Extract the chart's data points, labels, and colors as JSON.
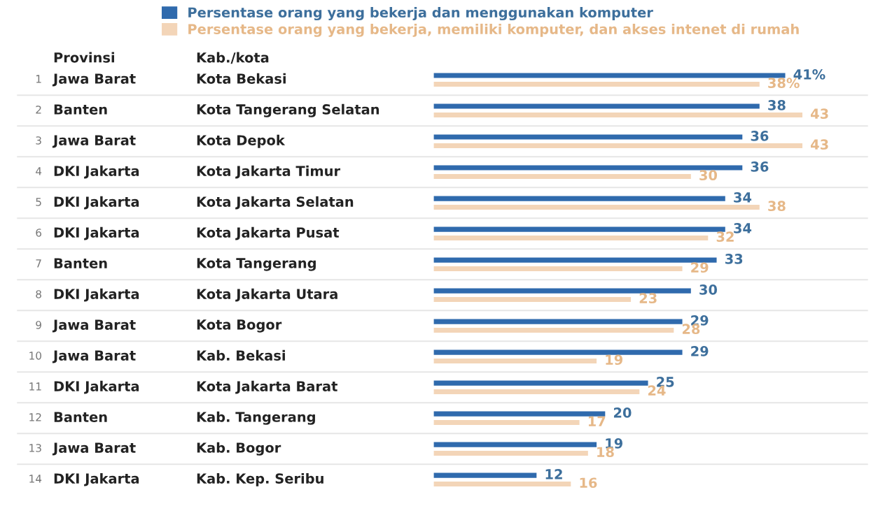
{
  "chart_data": {
    "type": "bar",
    "orientation": "horizontal",
    "legend": "top left",
    "categories": [
      "Kota Bekasi",
      "Kota Tangerang Selatan",
      "Kota Depok",
      "Kota Jakarta Timur",
      "Kota Jakarta Selatan",
      "Kota Jakarta Pusat",
      "Kota Tangerang",
      "Kota Jakarta Utara",
      "Kota Bogor",
      "Kab. Bekasi",
      "Kota Jakarta Barat",
      "Kab. Tangerang",
      "Kab. Bogor",
      "Kab. Kep. Seribu"
    ],
    "series": [
      {
        "name": "Persentase orang yang bekerja dan menggunakan komputer",
        "color": "#2f6aad",
        "values": [
          41,
          38,
          36,
          36,
          34,
          34,
          33,
          30,
          29,
          29,
          25,
          20,
          19,
          12
        ],
        "value_labels": [
          "41%",
          "38",
          "36",
          "36",
          "34",
          "34",
          "33",
          "30",
          "29",
          "29",
          "25",
          "20",
          "19",
          "12"
        ]
      },
      {
        "name": "Persentase orang yang bekerja, memiliki komputer, dan akses intenet di rumah",
        "color": "#f3d5b8",
        "values": [
          38,
          43,
          43,
          30,
          38,
          32,
          29,
          23,
          28,
          19,
          24,
          17,
          18,
          16
        ],
        "value_labels": [
          "38%",
          "43",
          "43",
          "30",
          "38",
          "32",
          "29",
          "23",
          "28",
          "19",
          "24",
          "17",
          "18",
          "16"
        ]
      }
    ],
    "annotations": [
      "Provinsi",
      "Kab./kota",
      "1",
      "Jawa Barat",
      "2",
      "Banten",
      "3",
      "Jawa Barat",
      "4",
      "DKI Jakarta",
      "5",
      "DKI Jakarta",
      "6",
      "DKI Jakarta",
      "7",
      "Banten",
      "8",
      "DKI Jakarta",
      "9",
      "Jawa Barat",
      "10",
      "Jawa Barat",
      "11",
      "DKI Jakarta",
      "12",
      "Banten",
      "13",
      "Jawa Barat",
      "14",
      "DKI Jakarta"
    ]
  }
}
